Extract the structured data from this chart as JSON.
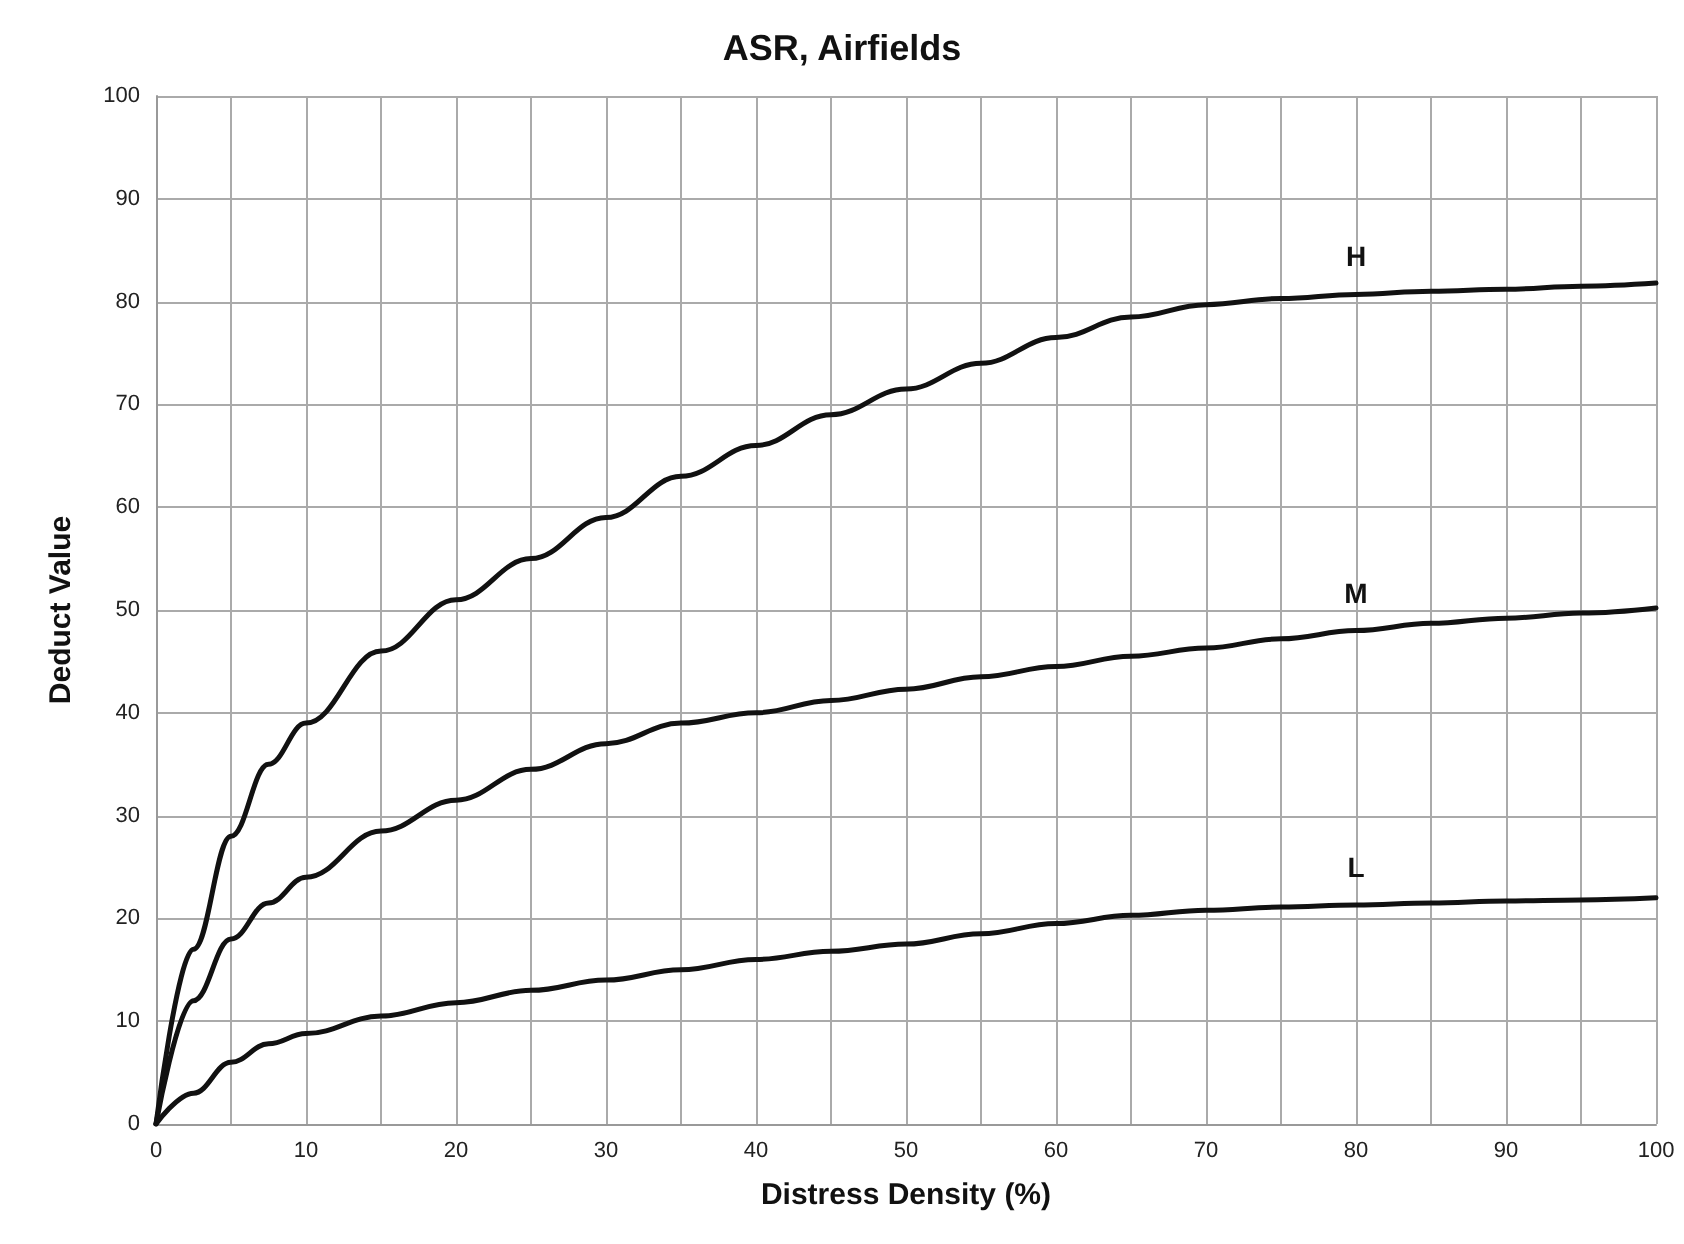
{
  "chart_data": {
    "type": "line",
    "title": "ASR, Airfields",
    "xlabel": "Distress Density (%)",
    "ylabel": "Deduct Value",
    "x": [
      0,
      2.5,
      5,
      7.5,
      10,
      15,
      20,
      25,
      30,
      35,
      40,
      45,
      50,
      55,
      60,
      65,
      70,
      75,
      80,
      85,
      90,
      95,
      100
    ],
    "series": [
      {
        "name": "H",
        "color": "#111111",
        "values": [
          0,
          17,
          28,
          35,
          39,
          46,
          51,
          55,
          59,
          63,
          66,
          69,
          71.5,
          74,
          76.5,
          78.5,
          79.7,
          80.3,
          80.7,
          81,
          81.2,
          81.5,
          81.8
        ]
      },
      {
        "name": "M",
        "color": "#111111",
        "values": [
          0,
          12,
          18,
          21.5,
          24,
          28.5,
          31.5,
          34.5,
          37,
          39,
          40,
          41.2,
          42.3,
          43.5,
          44.5,
          45.5,
          46.3,
          47.2,
          48,
          48.7,
          49.2,
          49.7,
          50.2
        ]
      },
      {
        "name": "L",
        "color": "#111111",
        "values": [
          0,
          3,
          6,
          7.8,
          8.8,
          10.5,
          11.8,
          13,
          14,
          15,
          16,
          16.8,
          17.5,
          18.5,
          19.5,
          20.3,
          20.8,
          21.1,
          21.3,
          21.5,
          21.7,
          21.8,
          22
        ]
      }
    ],
    "xlim": [
      0,
      100
    ],
    "ylim": [
      0,
      100
    ],
    "xticks": [
      0,
      {
        "value": 5,
        "label": null
      },
      10,
      {
        "value": 15,
        "label": null
      },
      20,
      {
        "value": 25,
        "label": null
      },
      30,
      {
        "value": 35,
        "label": null
      },
      40,
      {
        "value": 45,
        "label": null
      },
      50,
      {
        "value": 55,
        "label": null
      },
      60,
      {
        "value": 65,
        "label": null
      },
      70,
      {
        "value": 75,
        "label": null
      },
      80,
      {
        "value": 85,
        "label": null
      },
      90,
      {
        "value": 95,
        "label": null
      },
      100
    ],
    "yticks": [
      0,
      10,
      20,
      30,
      40,
      50,
      60,
      70,
      80,
      90,
      100
    ],
    "grid": true,
    "legend": false,
    "marker": "none",
    "line_style": "solid"
  }
}
